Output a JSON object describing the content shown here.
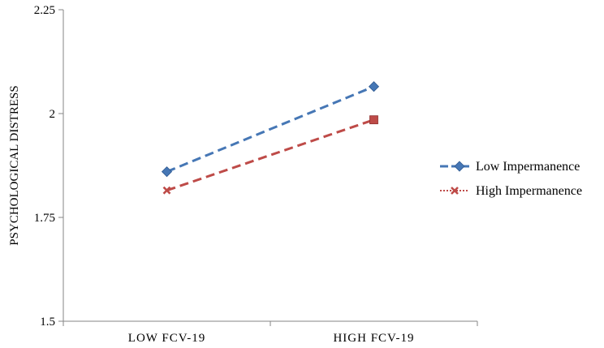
{
  "chart_data": {
    "type": "line",
    "categories": [
      "LOW FCV-19",
      "HIGH FCV-19"
    ],
    "ylabel": "PSYCHOLOGICAL DISTRESS",
    "xlabel": "",
    "ylim": [
      1.5,
      2.25
    ],
    "yticks": [
      "1.5",
      "1.75",
      "2",
      "2.25"
    ],
    "grid": false,
    "legend_position": "right",
    "series": [
      {
        "name": "Low Impermanence",
        "values": [
          1.86,
          2.065
        ],
        "color": "#4677b5",
        "marker": "diamond",
        "line_style": "dashed"
      },
      {
        "name": "High Impermanence",
        "values": [
          1.815,
          1.985
        ],
        "color": "#be4b48",
        "marker": "x-square",
        "line_style": "dashed"
      }
    ]
  }
}
